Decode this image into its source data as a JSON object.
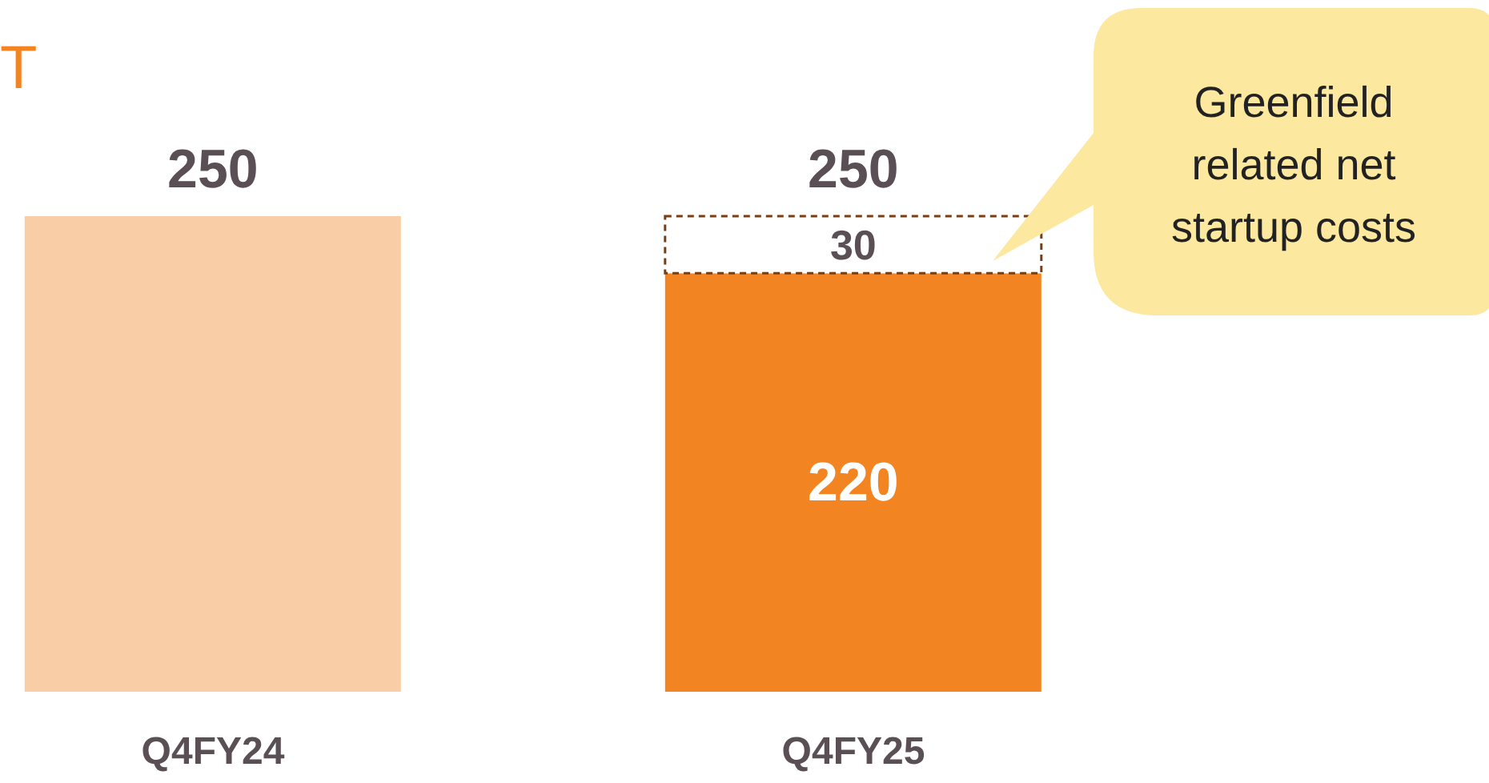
{
  "chart_data": {
    "type": "bar",
    "title": "T",
    "categories": [
      "Q4FY24",
      "Q4FY25"
    ],
    "stacked": true,
    "series": [
      {
        "values": [
          250,
          220
        ],
        "colors": [
          "#f9cda5",
          "#f28422"
        ],
        "value_labels": [
          null,
          "220"
        ]
      },
      {
        "values": [
          null,
          30
        ],
        "color": "#ffffff",
        "line_style": "dashed",
        "value_labels": [
          null,
          "30"
        ]
      }
    ],
    "totals": [
      "250",
      "250"
    ],
    "annotations": [
      "Greenfield related net startup costs"
    ]
  }
}
